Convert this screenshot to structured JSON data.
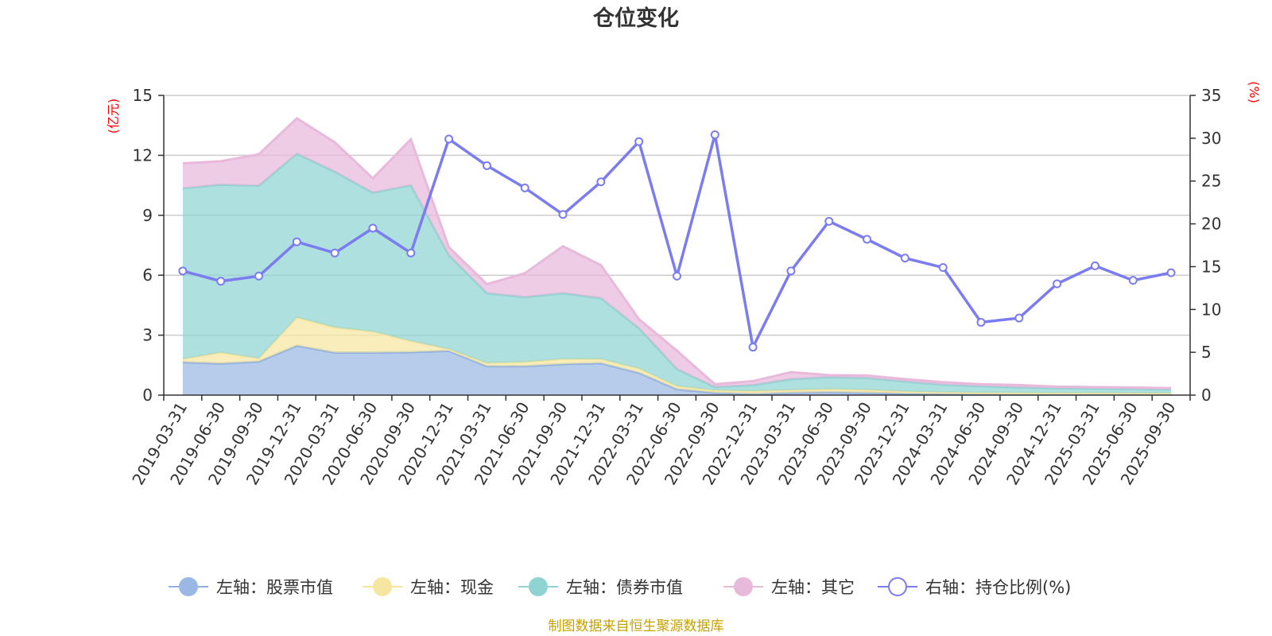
{
  "chart_data": {
    "type": "area",
    "title": "仓位变化",
    "left_axis_unit": "(亿元)",
    "right_axis_unit": "(%)",
    "left_ylim": [
      0,
      15
    ],
    "left_ticks": [
      "0",
      "3",
      "6",
      "9",
      "12",
      "15"
    ],
    "right_ylim": [
      0,
      35
    ],
    "right_ticks": [
      "0",
      "5",
      "10",
      "15",
      "20",
      "25",
      "30",
      "35"
    ],
    "categories": [
      "2019-03-31",
      "2019-06-30",
      "2019-09-30",
      "2019-12-31",
      "2020-03-31",
      "2020-06-30",
      "2020-09-30",
      "2020-12-31",
      "2021-03-31",
      "2021-06-30",
      "2021-09-30",
      "2021-12-31",
      "2022-03-31",
      "2022-06-30",
      "2022-09-30",
      "2022-12-31",
      "2023-03-31",
      "2023-06-30",
      "2023-09-30",
      "2023-12-31",
      "2024-03-31",
      "2024-06-30",
      "2024-09-30",
      "2024-12-31",
      "2025-03-31",
      "2025-06-30",
      "2025-09-30"
    ],
    "stacked_series": [
      {
        "name": "左轴：股票市值",
        "color": "#9bb7e3",
        "line": "#8fb0e0",
        "values": [
          1.65,
          1.58,
          1.68,
          2.48,
          2.13,
          2.13,
          2.15,
          2.22,
          1.45,
          1.45,
          1.55,
          1.6,
          1.12,
          0.3,
          0.12,
          0.06,
          0.12,
          0.15,
          0.12,
          0.08,
          0.06,
          0.05,
          0.04,
          0.05,
          0.05,
          0.04,
          0.04
        ]
      },
      {
        "name": "左轴：现金",
        "color": "#f7e6a1",
        "line": "#f7e6a1",
        "values": [
          0.15,
          0.55,
          0.15,
          1.4,
          1.25,
          1.05,
          0.55,
          0.08,
          0.15,
          0.2,
          0.25,
          0.2,
          0.2,
          0.15,
          0.12,
          0.14,
          0.13,
          0.15,
          0.14,
          0.1,
          0.08,
          0.07,
          0.07,
          0.05,
          0.05,
          0.05,
          0.05
        ]
      },
      {
        "name": "左轴：债券市值",
        "color": "#8fd4d2",
        "line": "#8fd4d2",
        "values": [
          8.55,
          8.4,
          8.65,
          8.2,
          7.8,
          6.95,
          7.8,
          4.7,
          3.5,
          3.25,
          3.3,
          3.05,
          2.03,
          0.85,
          0.16,
          0.3,
          0.55,
          0.6,
          0.6,
          0.5,
          0.38,
          0.33,
          0.28,
          0.25,
          0.23,
          0.22,
          0.2
        ]
      },
      {
        "name": "左轴：其它",
        "color": "#e9b9dc",
        "line": "#e9b9dc",
        "values": [
          1.25,
          1.17,
          1.57,
          1.77,
          1.47,
          0.72,
          2.3,
          0.4,
          0.45,
          1.2,
          2.35,
          1.65,
          0.45,
          0.92,
          0.14,
          0.2,
          0.35,
          0.1,
          0.12,
          0.12,
          0.13,
          0.1,
          0.11,
          0.07,
          0.07,
          0.07,
          0.06
        ]
      }
    ],
    "line_series": {
      "name": "右轴：持仓比例(%)",
      "color": "#7b7cf0",
      "values": [
        14.5,
        13.3,
        13.9,
        17.9,
        16.6,
        19.5,
        16.6,
        29.9,
        26.8,
        24.2,
        21.1,
        24.9,
        29.6,
        13.9,
        30.4,
        5.6,
        14.5,
        20.3,
        18.2,
        16.0,
        14.9,
        8.5,
        9.0,
        13.0,
        15.1,
        13.4,
        14.3
      ]
    },
    "legend_position": "bottom",
    "source_note": "制图数据来自恒生聚源数据库"
  }
}
